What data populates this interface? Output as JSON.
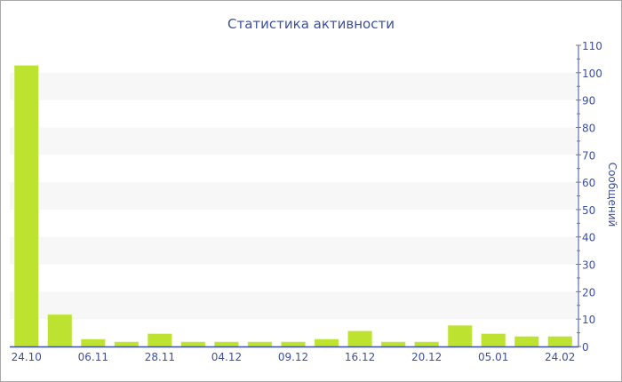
{
  "chart_data": {
    "type": "bar",
    "title": "Статистика активности",
    "xlabel": "",
    "ylabel": "Сообщений",
    "ylim": [
      0,
      110
    ],
    "y_ticks": [
      0,
      10,
      20,
      30,
      40,
      50,
      60,
      70,
      80,
      90,
      100,
      110
    ],
    "y_axis_position": "right",
    "grid": "alternating horizontal bands",
    "categories": [
      "24.10",
      "",
      "06.11",
      "",
      "28.11",
      "",
      "04.12",
      "",
      "09.12",
      "",
      "16.12",
      "",
      "20.12",
      "",
      "05.01",
      "",
      "24.02"
    ],
    "values": [
      102,
      11,
      2,
      1,
      4,
      1,
      1,
      1,
      1,
      2,
      5,
      1,
      1,
      7,
      4,
      3,
      3
    ],
    "colors": {
      "bar": "#bde22f",
      "axis": "#3d4fa0",
      "band": "#f7f7f7"
    }
  }
}
